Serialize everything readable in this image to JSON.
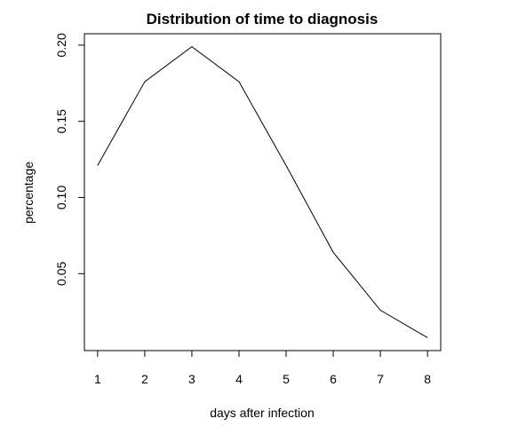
{
  "chart_data": {
    "type": "line",
    "title": "Distribution of time to diagnosis",
    "xlabel": "days after infection",
    "ylabel": "percentage",
    "x": [
      1,
      2,
      3,
      4,
      5,
      6,
      7,
      8
    ],
    "series": [
      {
        "values": [
          0.121,
          0.176,
          0.199,
          0.176,
          0.121,
          0.064,
          0.026,
          0.008
        ],
        "color": "#000000"
      }
    ],
    "xticks": [
      "1",
      "2",
      "3",
      "4",
      "5",
      "6",
      "7",
      "8"
    ],
    "yticks": [
      "0.05",
      "0.10",
      "0.15",
      "0.20"
    ],
    "xlim": [
      0.72,
      8.28
    ],
    "ylim": [
      -0.0005,
      0.2075
    ],
    "grid": false,
    "legend": "none"
  }
}
